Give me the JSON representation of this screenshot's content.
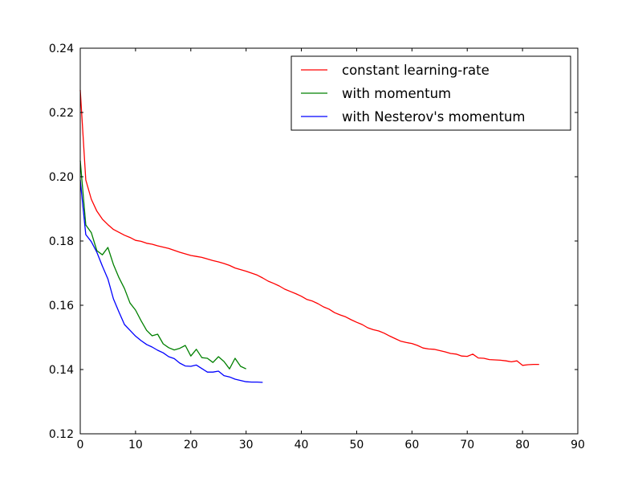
{
  "chart_data": {
    "type": "line",
    "title": "",
    "xlabel": "",
    "ylabel": "",
    "xlim": [
      0,
      90
    ],
    "ylim": [
      0.12,
      0.24
    ],
    "xticks": [
      0,
      10,
      20,
      30,
      40,
      50,
      60,
      70,
      80,
      90
    ],
    "yticks": [
      0.12,
      0.14,
      0.16,
      0.18,
      0.2,
      0.22,
      0.24
    ],
    "xtick_labels": [
      "0",
      "10",
      "20",
      "30",
      "40",
      "50",
      "60",
      "70",
      "80",
      "90"
    ],
    "ytick_labels": [
      "0.12",
      "0.14",
      "0.16",
      "0.18",
      "0.20",
      "0.22",
      "0.24"
    ],
    "grid": false,
    "legend_position": "top-right",
    "series": [
      {
        "name": "constant learning-rate",
        "color": "#ff0000",
        "x": [
          0,
          1,
          2,
          3,
          4,
          5,
          6,
          7,
          8,
          9,
          10,
          11,
          12,
          13,
          14,
          15,
          16,
          17,
          18,
          19,
          20,
          21,
          22,
          23,
          24,
          25,
          26,
          27,
          28,
          29,
          30,
          31,
          32,
          33,
          34,
          35,
          36,
          37,
          38,
          39,
          40,
          41,
          42,
          43,
          44,
          45,
          46,
          47,
          48,
          49,
          50,
          51,
          52,
          53,
          54,
          55,
          56,
          57,
          58,
          59,
          60,
          61,
          62,
          63,
          64,
          65,
          66,
          67,
          68,
          69,
          70,
          71,
          72,
          73,
          74,
          75,
          76,
          77,
          78,
          79,
          80,
          81,
          82,
          83
        ],
        "y": [
          0.227,
          0.199,
          0.193,
          0.1893,
          0.1868,
          0.1851,
          0.1836,
          0.1827,
          0.1818,
          0.1811,
          0.1802,
          0.1799,
          0.1793,
          0.179,
          0.1785,
          0.1781,
          0.1777,
          0.1771,
          0.1765,
          0.176,
          0.1755,
          0.1752,
          0.1749,
          0.1744,
          0.1739,
          0.1735,
          0.173,
          0.1724,
          0.1716,
          0.1711,
          0.1706,
          0.17,
          0.1694,
          0.1685,
          0.1675,
          0.1668,
          0.166,
          0.165,
          0.1643,
          0.1636,
          0.1628,
          0.1618,
          0.1613,
          0.1605,
          0.1595,
          0.1588,
          0.1577,
          0.157,
          0.1564,
          0.1555,
          0.1547,
          0.154,
          0.153,
          0.1524,
          0.152,
          0.1513,
          0.1504,
          0.1496,
          0.1488,
          0.1484,
          0.1481,
          0.1475,
          0.1467,
          0.1464,
          0.1463,
          0.1459,
          0.1455,
          0.145,
          0.1448,
          0.1442,
          0.1441,
          0.1448,
          0.1436,
          0.1435,
          0.1431,
          0.143,
          0.1429,
          0.1427,
          0.1424,
          0.1427,
          0.1413,
          0.1415,
          0.1416,
          0.1416
        ]
      },
      {
        "name": "with momentum",
        "color": "#008000",
        "x": [
          0,
          1,
          2,
          3,
          4,
          5,
          6,
          7,
          8,
          9,
          10,
          11,
          12,
          13,
          14,
          15,
          16,
          17,
          18,
          19,
          20,
          21,
          22,
          23,
          24,
          25,
          26,
          27,
          28,
          29,
          30
        ],
        "y": [
          0.205,
          0.185,
          0.1826,
          0.177,
          0.1757,
          0.178,
          0.1727,
          0.1686,
          0.1652,
          0.1607,
          0.1585,
          0.1552,
          0.1522,
          0.1505,
          0.151,
          0.148,
          0.1468,
          0.1461,
          0.1466,
          0.1475,
          0.1442,
          0.1463,
          0.1437,
          0.1435,
          0.1422,
          0.144,
          0.1425,
          0.1402,
          0.1435,
          0.141,
          0.1402
        ]
      },
      {
        "name": "with Nesterov's momentum",
        "color": "#0000ff",
        "x": [
          0,
          1,
          2,
          3,
          4,
          5,
          6,
          7,
          8,
          9,
          10,
          11,
          12,
          13,
          14,
          15,
          16,
          17,
          18,
          19,
          20,
          21,
          22,
          23,
          24,
          25,
          26,
          27,
          28,
          29,
          30,
          31,
          32,
          33
        ],
        "y": [
          0.199,
          0.182,
          0.1798,
          0.1765,
          0.1722,
          0.1682,
          0.162,
          0.1579,
          0.154,
          0.1522,
          0.1504,
          0.149,
          0.1478,
          0.147,
          0.146,
          0.1452,
          0.144,
          0.1434,
          0.142,
          0.1411,
          0.141,
          0.1414,
          0.1403,
          0.1392,
          0.1392,
          0.1395,
          0.1381,
          0.1377,
          0.137,
          0.1366,
          0.1362,
          0.1361,
          0.1361,
          0.136
        ]
      }
    ]
  }
}
